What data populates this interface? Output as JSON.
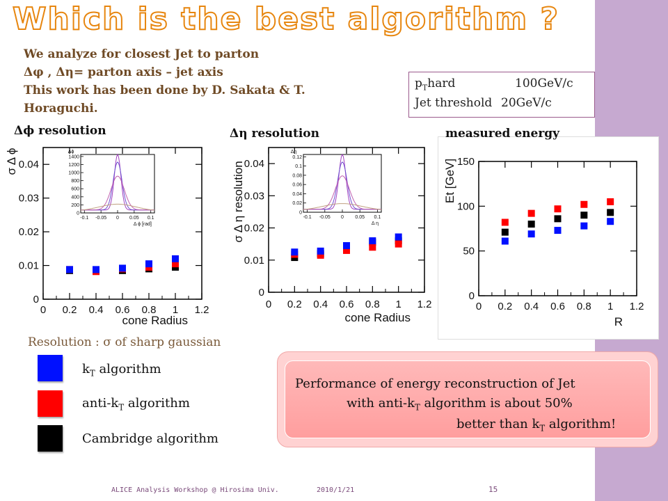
{
  "title": "Which is the best algorithm ?",
  "intro": {
    "line1": "We analyze for closest Jet to parton",
    "line2": "Δφ , Δη= parton axis – jet axis",
    "line3": "This work has been done by D. Sakata & T.",
    "line4": "Horaguchi."
  },
  "params": {
    "pt_hard_label": "hard",
    "pt_hard_value": "100GeV/c",
    "jet_threshold_label": "Jet threshold",
    "jet_threshold_value": "20GeV/c"
  },
  "panel_labels": {
    "phi": "Δϕ resolution",
    "eta": "Δη resolution",
    "energy": "measured energy"
  },
  "legend": {
    "heading": "Resolution : σ of sharp gaussian",
    "kt": "algorithm",
    "antikt": "algorithm",
    "cambridge": "Cambridge algorithm"
  },
  "callout": {
    "line1": "Performance of energy reconstruction of Jet",
    "line2a": "with anti-k",
    "line2b": " algorithm is about 50%",
    "line3a": "better than k",
    "line3b": " algorithm!"
  },
  "footer": {
    "workshop": "ALICE Analysis Workshop @ Hirosima Univ.",
    "date": "2010/1/21",
    "page": "15"
  },
  "colors": {
    "kt": "#0010ff",
    "antikt": "#ff0000",
    "cambridge": "#000000",
    "title_outline": "#e7860f",
    "sidebar": "#c6a9d0"
  },
  "chart_data": [
    {
      "type": "scatter",
      "title": "Δϕ resolution",
      "xlabel": "cone Radius",
      "ylabel": "σ Δ ϕ",
      "xlim": [
        0,
        1.2
      ],
      "ylim": [
        0,
        0.045
      ],
      "xticks": [
        "0",
        "0.2",
        "0.4",
        "0.6",
        "0.8",
        "1",
        "1.2"
      ],
      "yticks": [
        "0",
        "0.01",
        "0.02",
        "0.03",
        "0.04"
      ],
      "x": [
        0.2,
        0.4,
        0.6,
        0.8,
        1.0
      ],
      "series": [
        {
          "name": "kT algorithm",
          "values": [
            0.0088,
            0.0088,
            0.0092,
            0.0105,
            0.012
          ]
        },
        {
          "name": "anti-kT algorithm",
          "values": [
            0.0088,
            0.0082,
            0.009,
            0.0095,
            0.0105
          ]
        },
        {
          "name": "Cambridge algorithm",
          "values": [
            0.0085,
            0.0085,
            0.0085,
            0.009,
            0.0095
          ]
        }
      ]
    },
    {
      "type": "scatter",
      "title": "Δη resolution",
      "xlabel": "cone Radius",
      "ylabel": "σ Δ η resolution",
      "xlim": [
        0,
        1.2
      ],
      "ylim": [
        0,
        0.045
      ],
      "xticks": [
        "0",
        "0.2",
        "0.4",
        "0.6",
        "0.8",
        "1",
        "1.2"
      ],
      "yticks": [
        "0",
        "0.01",
        "0.02",
        "0.03",
        "0.04"
      ],
      "x": [
        0.2,
        0.4,
        0.6,
        0.8,
        1.0
      ],
      "series": [
        {
          "name": "kT algorithm",
          "values": [
            0.0125,
            0.0128,
            0.0145,
            0.016,
            0.0172
          ]
        },
        {
          "name": "anti-kT algorithm",
          "values": [
            0.0118,
            0.0115,
            0.013,
            0.014,
            0.015
          ]
        },
        {
          "name": "Cambridge algorithm",
          "values": [
            0.0108,
            0.012,
            0.014,
            0.0155,
            0.016
          ]
        }
      ]
    },
    {
      "type": "scatter",
      "title": "measured energy",
      "xlabel": "R",
      "ylabel": "Et [GeV]",
      "xlim": [
        0,
        1.2
      ],
      "ylim": [
        0,
        150
      ],
      "xticks": [
        "0",
        "0.2",
        "0.4",
        "0.6",
        "0.8",
        "1",
        "1.2"
      ],
      "yticks": [
        "0",
        "50",
        "100",
        "150"
      ],
      "x": [
        0.2,
        0.4,
        0.6,
        0.8,
        1.0
      ],
      "series": [
        {
          "name": "kT algorithm",
          "values": [
            61,
            69,
            73,
            78,
            83
          ]
        },
        {
          "name": "anti-kT algorithm",
          "values": [
            82,
            92,
            97,
            102,
            105
          ]
        },
        {
          "name": "Cambridge algorithm",
          "values": [
            71,
            80,
            86,
            90,
            93
          ]
        }
      ]
    }
  ],
  "insets": [
    {
      "type": "line",
      "xlabel": "Δ ϕ [rad]",
      "ylabel": "Δϕ",
      "xticks": [
        "-0.1",
        "-0.05",
        "0",
        "0.05",
        "0.1"
      ],
      "yticks": [
        "0",
        "200",
        "400",
        "600",
        "800",
        "1000",
        "1200",
        "1400"
      ],
      "ylim": [
        0,
        1450
      ]
    },
    {
      "type": "line",
      "xlabel": "Δ η",
      "ylabel": "Δη",
      "xticks": [
        "-0.1",
        "-0.05",
        "0",
        "0.05",
        "0.1"
      ],
      "yticks": [
        "0",
        "0.02",
        "0.04",
        "0.06",
        "0.08",
        "0.1",
        "0.12"
      ],
      "ylim": [
        0,
        0.125
      ]
    }
  ]
}
